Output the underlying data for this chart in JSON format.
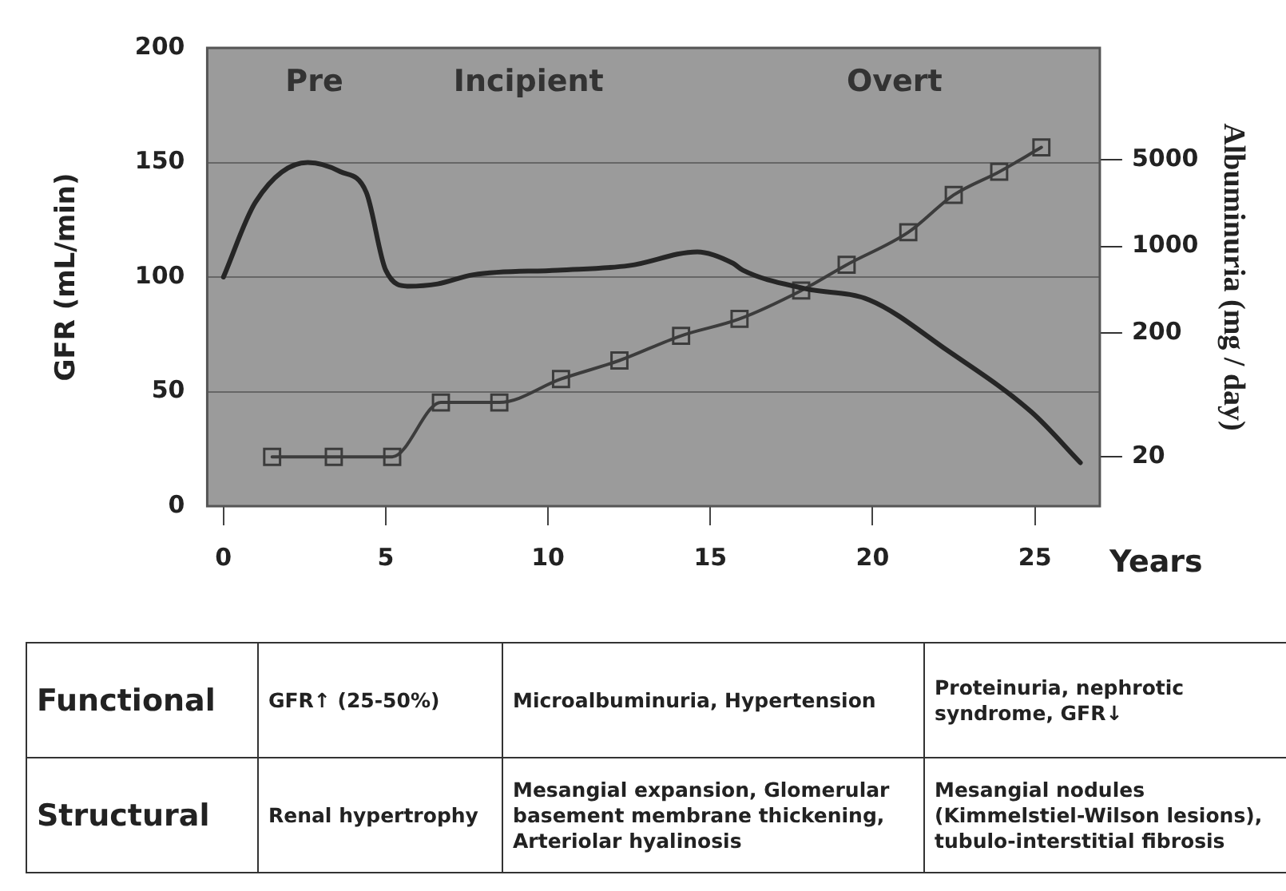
{
  "chart_data": {
    "type": "line",
    "xlabel": "Years",
    "ylabel": "GFR (mL/min)",
    "y2label": "Albuminuria (mg / day)",
    "xlim": [
      -0.5,
      27
    ],
    "xticks": [
      0,
      5,
      10,
      15,
      20,
      25
    ],
    "ylim": [
      0,
      200
    ],
    "yticks": [
      0,
      50,
      100,
      150,
      200
    ],
    "y2lim": [
      8,
      40000
    ],
    "y2ticks": [
      20,
      200,
      1000,
      5000
    ],
    "log": "y2",
    "grid": "y",
    "legend": false,
    "line_style": "solid",
    "series": [
      {
        "color": "#262626",
        "marker": "none",
        "x": [
          0,
          1,
          2.6,
          3.6,
          4.4,
          5,
          5.7,
          6.6,
          7.7,
          10.3,
          12.5,
          14.6,
          15.7,
          16,
          17.9,
          19.9,
          22.3,
          24.9,
          26.4
        ],
        "values": [
          100,
          133,
          150,
          146,
          137,
          103,
          96,
          97,
          101,
          103,
          105,
          111,
          106,
          103,
          95,
          90,
          68,
          41,
          19
        ]
      },
      {
        "color": "#3c3c3c",
        "marker": "square",
        "axis": "y2",
        "x": [
          1.5,
          3.4,
          5.2,
          6.7,
          8.5,
          10.4,
          12.2,
          14.1,
          15.9,
          17.8,
          19.2,
          21.1,
          22.5,
          23.9,
          25.2
        ],
        "values": [
          20,
          20,
          20,
          55,
          55,
          85,
          120,
          190,
          260,
          440,
          710,
          1300,
          2600,
          4000,
          6300
        ]
      }
    ],
    "annotations": [
      "Pre",
      "Incipient",
      "Overt",
      "Functional",
      "GFR↑ (25-50%)",
      "Microalbuminuria, Hypertension",
      "Proteinuria, nephrotic syndrome, GFR↓",
      "Structural",
      "Renal hypertrophy",
      "Mesangial expansion, Glomerular basement membrane thickening, Arteriolar hyalinosis",
      "Mesangial nodules (Kimmelstiel-Wilson lesions), tubulo-interstitial fibrosis"
    ]
  }
}
